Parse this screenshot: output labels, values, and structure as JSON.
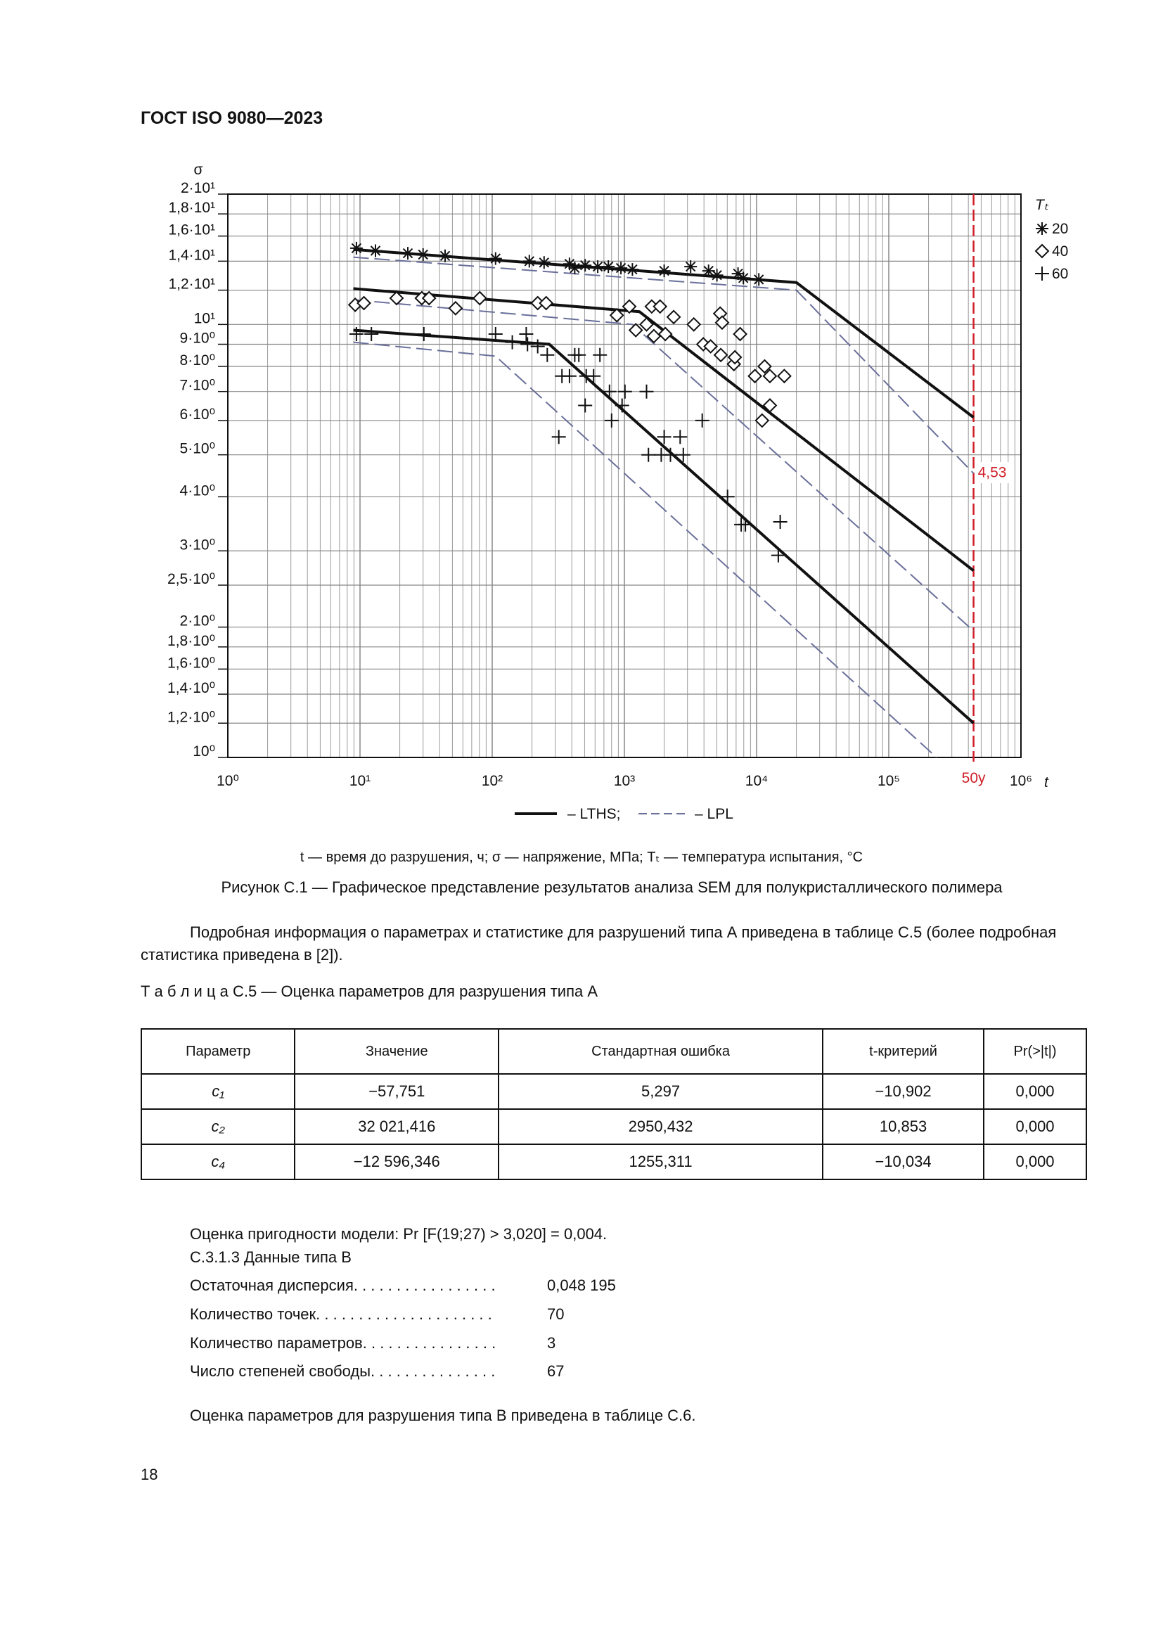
{
  "header": {
    "title": "ГОСТ ISO 9080—2023"
  },
  "chart_data": {
    "type": "scatter",
    "y_label": "σ",
    "x_label": "t",
    "xscale": "log",
    "yscale": "log",
    "grid": true,
    "minor_grid": true,
    "xlim": [
      1,
      1000000
    ],
    "ylim": [
      1,
      20
    ],
    "xticks": [
      {
        "value": 1,
        "label": "10⁰"
      },
      {
        "value": 10,
        "label": "10¹"
      },
      {
        "value": 100,
        "label": "10²"
      },
      {
        "value": 1000,
        "label": "10³"
      },
      {
        "value": 10000,
        "label": "10⁴"
      },
      {
        "value": 100000,
        "label": "10⁵"
      },
      {
        "value": 1000000,
        "label": "10⁶"
      }
    ],
    "yticks": [
      {
        "value": 20,
        "label": "2·10¹"
      },
      {
        "value": 18,
        "label": "1,8·10¹"
      },
      {
        "value": 16,
        "label": "1,6·10¹"
      },
      {
        "value": 14,
        "label": "1,4·10¹"
      },
      {
        "value": 12,
        "label": "1,2·10¹"
      },
      {
        "value": 10,
        "label": "10¹"
      },
      {
        "value": 9,
        "label": "9·10⁰"
      },
      {
        "value": 8,
        "label": "8·10⁰"
      },
      {
        "value": 7,
        "label": "7·10⁰"
      },
      {
        "value": 6,
        "label": "6·10⁰"
      },
      {
        "value": 5,
        "label": "5·10⁰"
      },
      {
        "value": 4,
        "label": "4·10⁰"
      },
      {
        "value": 3,
        "label": "3·10⁰"
      },
      {
        "value": 2.5,
        "label": "2,5·10⁰"
      },
      {
        "value": 2,
        "label": "2·10⁰"
      },
      {
        "value": 1.8,
        "label": "1,8·10⁰"
      },
      {
        "value": 1.6,
        "label": "1,6·10⁰"
      },
      {
        "value": 1.4,
        "label": "1,4·10⁰"
      },
      {
        "value": 1.2,
        "label": "1,2·10⁰"
      },
      {
        "value": 1,
        "label": "10⁰"
      }
    ],
    "legend_title": "Tₜ",
    "legend": "right",
    "series": [
      {
        "name": "20",
        "marker": "asterisk",
        "color": "#111111",
        "x": [
          9.4,
          13.1,
          23,
          30,
          44,
          106,
          191,
          247,
          384,
          421,
          505,
          629,
          756,
          942,
          1150,
          2000,
          3170,
          4330,
          5010,
          7240,
          7940,
          10400
        ],
        "values": [
          15.0,
          14.8,
          14.6,
          14.5,
          14.4,
          14.2,
          14.0,
          13.9,
          13.8,
          13.5,
          13.7,
          13.6,
          13.6,
          13.5,
          13.4,
          13.3,
          13.6,
          13.3,
          13.0,
          13.1,
          12.8,
          12.7
        ]
      },
      {
        "name": "40",
        "marker": "diamond",
        "color": "#111111",
        "x": [
          9.2,
          10.7,
          18.9,
          29.3,
          33.3,
          52.8,
          80.5,
          221,
          256,
          876,
          1090,
          1220,
          1470,
          1610,
          1670,
          1860,
          2040,
          2360,
          3350,
          3950,
          4490,
          5300,
          5490,
          5360,
          6730,
          6850,
          7510,
          9710,
          11500,
          12600,
          11000,
          12600,
          16200
        ],
        "values": [
          11.1,
          11.2,
          11.5,
          11.5,
          11.5,
          10.9,
          11.5,
          11.2,
          11.2,
          10.5,
          11.0,
          9.7,
          10.0,
          11.0,
          9.4,
          11.0,
          9.5,
          10.4,
          10.0,
          9.0,
          8.9,
          10.6,
          10.1,
          8.5,
          8.1,
          8.4,
          9.5,
          7.6,
          8.0,
          7.6,
          6.0,
          6.5,
          7.6
        ]
      },
      {
        "name": "60",
        "marker": "plus",
        "color": "#111111",
        "x": [
          9.4,
          12.2,
          30.4,
          106,
          142,
          181,
          185,
          221,
          261,
          319,
          337,
          384,
          421,
          452,
          505,
          514,
          585,
          653,
          771,
          800,
          960,
          1010,
          1470,
          1520,
          1900,
          2000,
          2230,
          2640,
          2790,
          3880,
          6030,
          7650,
          8230,
          15100,
          14600
        ],
        "values": [
          9.5,
          9.5,
          9.5,
          9.5,
          9.1,
          9.5,
          9.0,
          8.9,
          8.5,
          5.5,
          7.6,
          7.6,
          8.5,
          8.5,
          6.5,
          7.6,
          7.6,
          8.5,
          7.0,
          6.0,
          6.5,
          7.0,
          7.0,
          5.0,
          5.0,
          5.5,
          5.0,
          5.5,
          5.0,
          6.0,
          4.0,
          3.45,
          3.45,
          3.5,
          2.93
        ]
      }
    ],
    "fit_lines": [
      {
        "name": "– LTHS;",
        "color": "#111111",
        "dash": false,
        "segments": [
          {
            "x": [
              8.9,
              20000,
              438000
            ],
            "values": [
              14.9,
              12.5,
              6.1
            ]
          },
          {
            "x": [
              8.9,
              1300,
              438000
            ],
            "values": [
              12.1,
              10.7,
              2.7
            ]
          },
          {
            "x": [
              8.9,
              270,
              438000
            ],
            "values": [
              9.7,
              9.0,
              1.2
            ]
          }
        ]
      },
      {
        "name": "– LPL",
        "color": "#6a6f9a",
        "dash": true,
        "segments": [
          {
            "x": [
              8.9,
              20000,
              438000
            ],
            "values": [
              14.3,
              12.0,
              4.53
            ]
          },
          {
            "x": [
              8.9,
              1150,
              438000
            ],
            "values": [
              11.4,
              10.0,
              1.96
            ]
          },
          {
            "x": [
              8.9,
              106,
              230000
            ],
            "values": [
              9.1,
              8.45,
              1.0
            ]
          }
        ]
      }
    ],
    "reference_line": {
      "x": 438000,
      "label": "50y",
      "color": "#d0202a"
    },
    "annotation": {
      "value": 4.53,
      "label": "4,53"
    }
  },
  "figure": {
    "note": "t — время до разрушения, ч; σ — напряжение, МПа; Tₜ — температура испытания, °C",
    "caption": "Рисунок С.1 — Графическое представление результатов анализа SEM для полукристаллического полимера"
  },
  "paragraph": "Подробная информация о параметрах и статистике для разрушений типа А приведена в таблице С.5 (более подробная статистика приведена в [2]).",
  "table": {
    "title": "Т а б л и ц а  С.5 — Оценка параметров для разрушения типа А",
    "header": [
      "Параметр",
      "Значение",
      "Стандартная ошибка",
      "t-критерий",
      "Pr(>|t|)"
    ],
    "rows": [
      [
        "c₁",
        "−57,751",
        "5,297",
        "−10,902",
        "0,000"
      ],
      [
        "c₂",
        "32 021,416",
        "2950,432",
        "10,853",
        "0,000"
      ],
      [
        "c₄",
        "−12 596,346",
        "1255,311",
        "−10,034",
        "0,000"
      ]
    ]
  },
  "fit_text": "Оценка пригодности модели: Pr [F(19;27) > 3,020] = 0,004.",
  "section": "С.3.1.3  Данные типа В",
  "stats": [
    [
      "Остаточная дисперсия. . . . . . . . . . . . . . . . .",
      "0,048 195"
    ],
    [
      "Количество точек. . . . . . . . . . . . . . . . . . . . .",
      "70"
    ],
    [
      "Количество параметров. . . . . . . . . . . . . . . .",
      "3"
    ],
    [
      "Число степеней свободы. . . . . . . . . . . . . . .",
      "67"
    ]
  ],
  "closing": "Оценка параметров для разрушения типа В приведена в таблице С.6.",
  "page_number": "18"
}
